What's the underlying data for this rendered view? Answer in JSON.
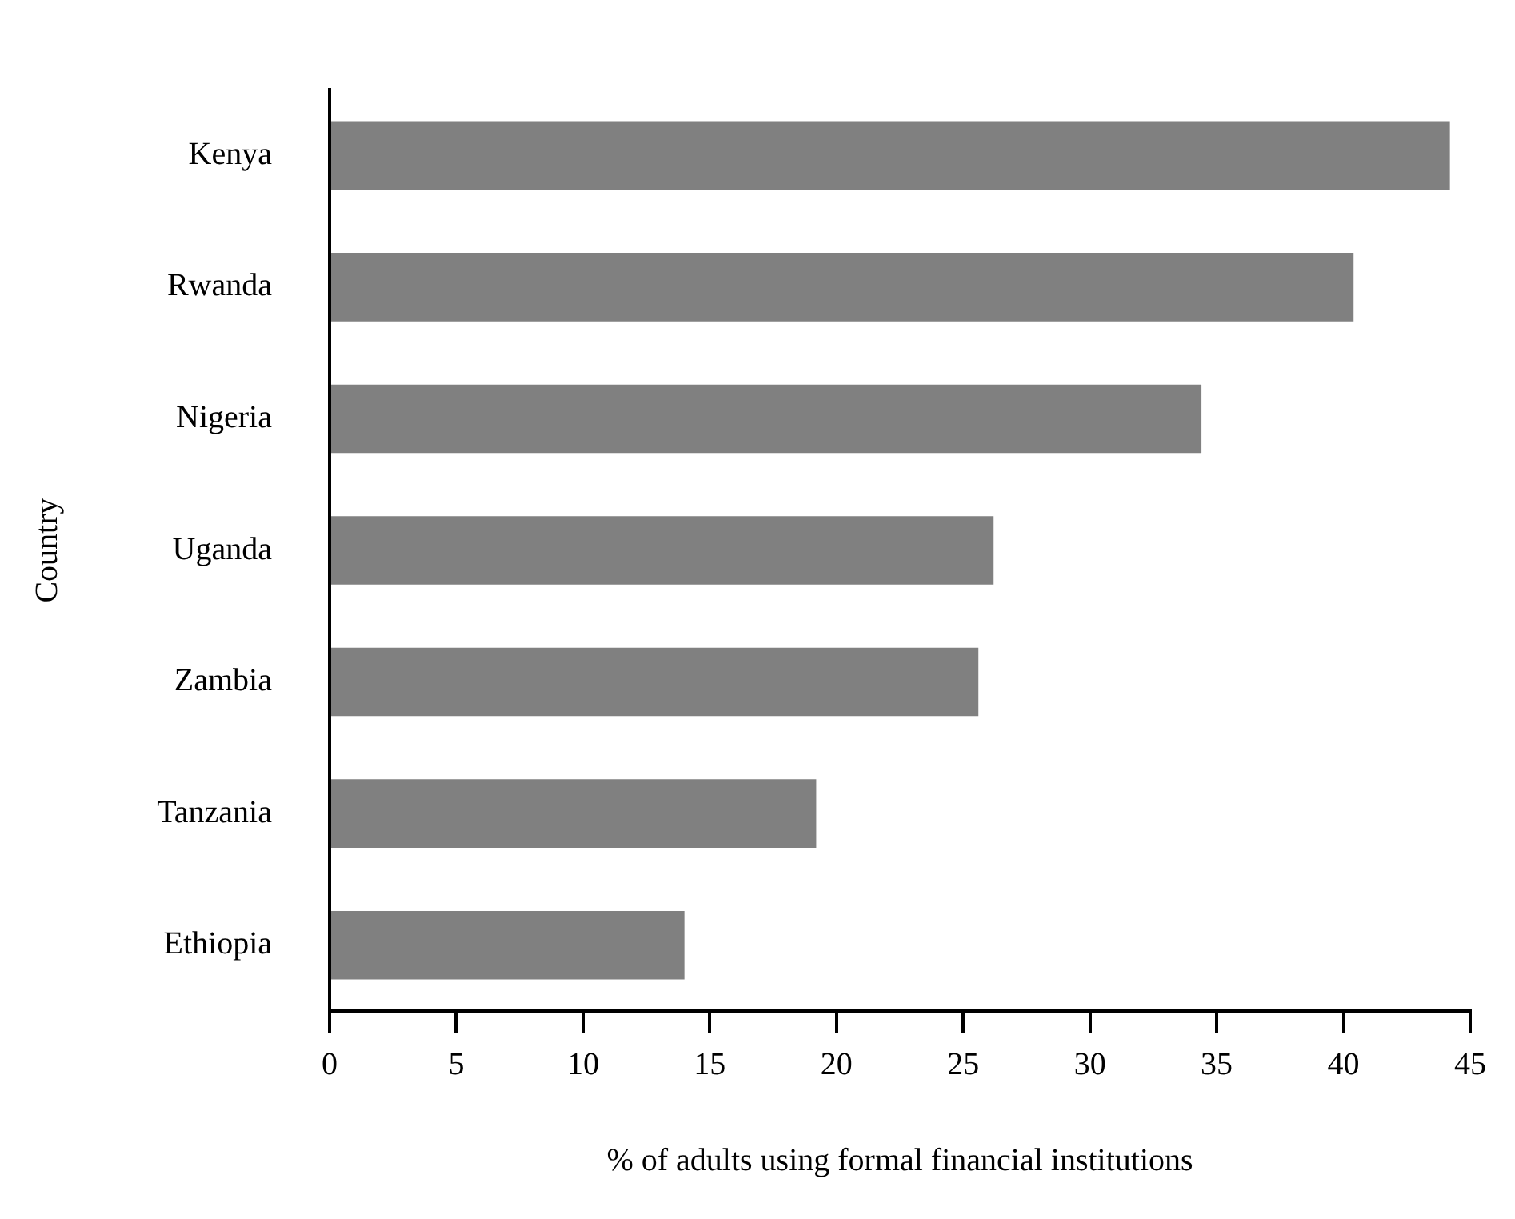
{
  "chart_data": {
    "type": "bar",
    "orientation": "horizontal",
    "xlabel": "% of adults using formal financial institutions",
    "ylabel": "Country",
    "categories": [
      "Kenya",
      "Rwanda",
      "Nigeria",
      "Uganda",
      "Zambia",
      "Tanzania",
      "Ethiopia"
    ],
    "values": [
      44.2,
      40.4,
      34.4,
      26.2,
      25.6,
      19.2,
      14.0
    ],
    "color": "#808080",
    "xlim": [
      0,
      45
    ],
    "xticks": [
      0,
      5,
      10,
      15,
      20,
      25,
      30,
      35,
      40,
      45
    ],
    "grid": false,
    "legend": false
  }
}
